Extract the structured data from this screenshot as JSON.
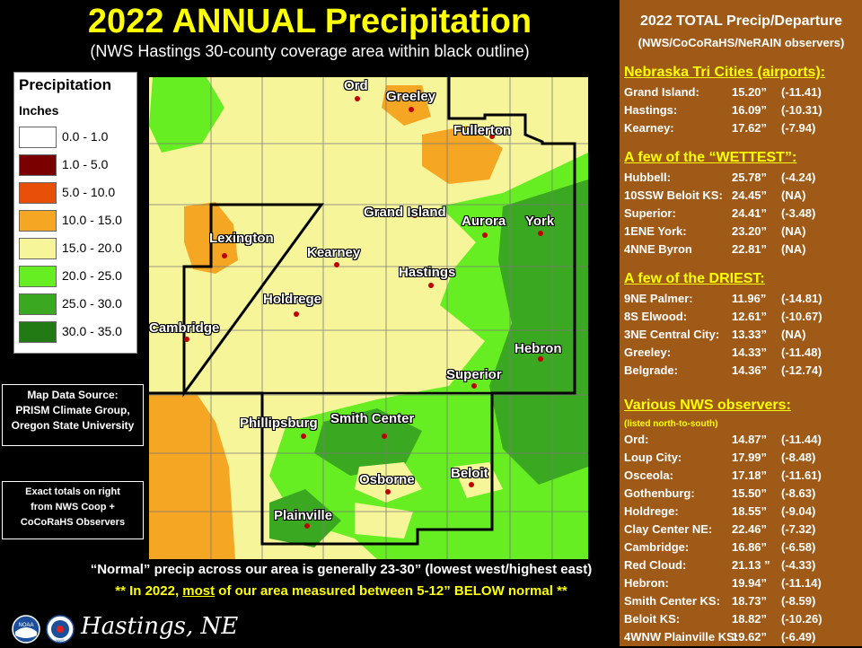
{
  "header": {
    "title": "2022 ANNUAL Precipitation",
    "subtitle": "(NWS Hastings 30-county coverage area within black outline)"
  },
  "legend": {
    "title": "Precipitation",
    "units": "Inches",
    "classes": [
      {
        "label": "0.0 - 1.0",
        "color": "#ffffff"
      },
      {
        "label": "1.0 - 5.0",
        "color": "#7a0000"
      },
      {
        "label": "5.0 - 10.0",
        "color": "#e8500a"
      },
      {
        "label": "10.0 - 15.0",
        "color": "#f5a623"
      },
      {
        "label": "15.0 - 20.0",
        "color": "#f7f59a"
      },
      {
        "label": "20.0 - 25.0",
        "color": "#66ee22"
      },
      {
        "label": "25.0 - 30.0",
        "color": "#3aa820"
      },
      {
        "label": "30.0 - 35.0",
        "color": "#227a14"
      }
    ]
  },
  "map": {
    "cities": [
      {
        "name": "Ord",
        "id": "ord"
      },
      {
        "name": "Greeley",
        "id": "greeley"
      },
      {
        "name": "Fullerton",
        "id": "fullerton"
      },
      {
        "name": "Grand Island",
        "id": "grand-island"
      },
      {
        "name": "Aurora",
        "id": "aurora"
      },
      {
        "name": "York",
        "id": "york"
      },
      {
        "name": "Lexington",
        "id": "lexington"
      },
      {
        "name": "Kearney",
        "id": "kearney"
      },
      {
        "name": "Hastings",
        "id": "hastings"
      },
      {
        "name": "Holdrege",
        "id": "holdrege"
      },
      {
        "name": "Cambridge",
        "id": "cambridge"
      },
      {
        "name": "Hebron",
        "id": "hebron"
      },
      {
        "name": "Superior",
        "id": "superior"
      },
      {
        "name": "Phillipsburg",
        "id": "phillipsburg"
      },
      {
        "name": "Smith Center",
        "id": "smith-center"
      },
      {
        "name": "Osborne",
        "id": "osborne"
      },
      {
        "name": "Beloit",
        "id": "beloit"
      },
      {
        "name": "Plainville",
        "id": "plainville"
      }
    ]
  },
  "source_box": {
    "lines": [
      "Map Data Source:",
      "PRISM Climate Group,",
      "Oregon State University"
    ]
  },
  "totals_box": {
    "lines": [
      "Exact totals on right",
      "from NWS Coop +",
      "CoCoRaHS  Observers"
    ]
  },
  "footer": {
    "normal": "“Normal” precip across our area is generally 23-30” (lowest west/highest east)",
    "below_prefix": "** In 2022, ",
    "below_emph": "most",
    "below_suffix": " of our area measured between 5-12” BELOW normal **",
    "office": "Hastings, NE",
    "logo_noaa": "NOAA",
    "logo_nws": "NWS"
  },
  "panel": {
    "title": "2022 TOTAL Precip/Departure",
    "subtitle": "(NWS/CoCoRaHS/NeRAIN observers)",
    "sections": [
      {
        "id": "tri-cities",
        "heading": "Nebraska Tri Cities (airports):",
        "note": "",
        "rows": [
          {
            "name": "Grand Island:",
            "total": "15.20”",
            "dep": "(-11.41)"
          },
          {
            "name": "Hastings:",
            "total": "16.09”",
            "dep": "(-10.31)"
          },
          {
            "name": "Kearney:",
            "total": "17.62”",
            "dep": "(-7.94)"
          }
        ]
      },
      {
        "id": "wettest",
        "heading": "A few of the “WETTEST”:",
        "note": "",
        "rows": [
          {
            "name": "Hubbell:",
            "total": "25.78”",
            "dep": "(-4.24)"
          },
          {
            "name": "10SSW Beloit KS:",
            "total": "24.45”",
            "dep": "(NA)"
          },
          {
            "name": "Superior:",
            "total": "24.41”",
            "dep": "(-3.48)"
          },
          {
            "name": "1ENE York:",
            "total": "23.20”",
            "dep": "(NA)"
          },
          {
            "name": "4NNE Byron",
            "total": "22.81”",
            "dep": "(NA)"
          }
        ]
      },
      {
        "id": "driest",
        "heading": "A few of the DRIEST:",
        "note": "",
        "rows": [
          {
            "name": "9NE Palmer:",
            "total": "11.96”",
            "dep": "(-14.81)"
          },
          {
            "name": "8S Elwood:",
            "total": "12.61”",
            "dep": "(-10.67)"
          },
          {
            "name": "3NE Central City:",
            "total": "13.33”",
            "dep": "(NA)"
          },
          {
            "name": "Greeley:",
            "total": "14.33”",
            "dep": "(-11.48)"
          },
          {
            "name": "Belgrade:",
            "total": "14.36”",
            "dep": "(-12.74)"
          }
        ]
      },
      {
        "id": "observers",
        "heading": "Various NWS observers:",
        "note": "(listed north-to-south)",
        "rows": [
          {
            "name": "Ord:",
            "total": "14.87”",
            "dep": "(-11.44)"
          },
          {
            "name": "Loup City:",
            "total": "17.99”",
            "dep": "(-8.48)"
          },
          {
            "name": "Osceola:",
            "total": "17.18”",
            "dep": "(-11.61)"
          },
          {
            "name": "Gothenburg:",
            "total": "15.50”",
            "dep": "(-8.63)"
          },
          {
            "name": "Holdrege:",
            "total": "18.55”",
            "dep": "(-9.04)"
          },
          {
            "name": "Clay Center NE:",
            "total": "22.46”",
            "dep": "(-7.32)"
          },
          {
            "name": "Cambridge:",
            "total": "16.86”",
            "dep": "(-6.58)"
          },
          {
            "name": "Red Cloud:",
            "total": "21.13 ”",
            "dep": "(-4.33)"
          },
          {
            "name": "Hebron:",
            "total": "19.94”",
            "dep": "(-11.14)"
          },
          {
            "name": "Smith Center KS:",
            "total": "18.73”",
            "dep": "(-8.59)"
          },
          {
            "name": "Beloit KS:",
            "total": "18.82”",
            "dep": "(-10.26)"
          },
          {
            "name": "4WNW Plainville KS:",
            "total": "19.62”",
            "dep": "(-6.49)"
          }
        ]
      }
    ]
  }
}
